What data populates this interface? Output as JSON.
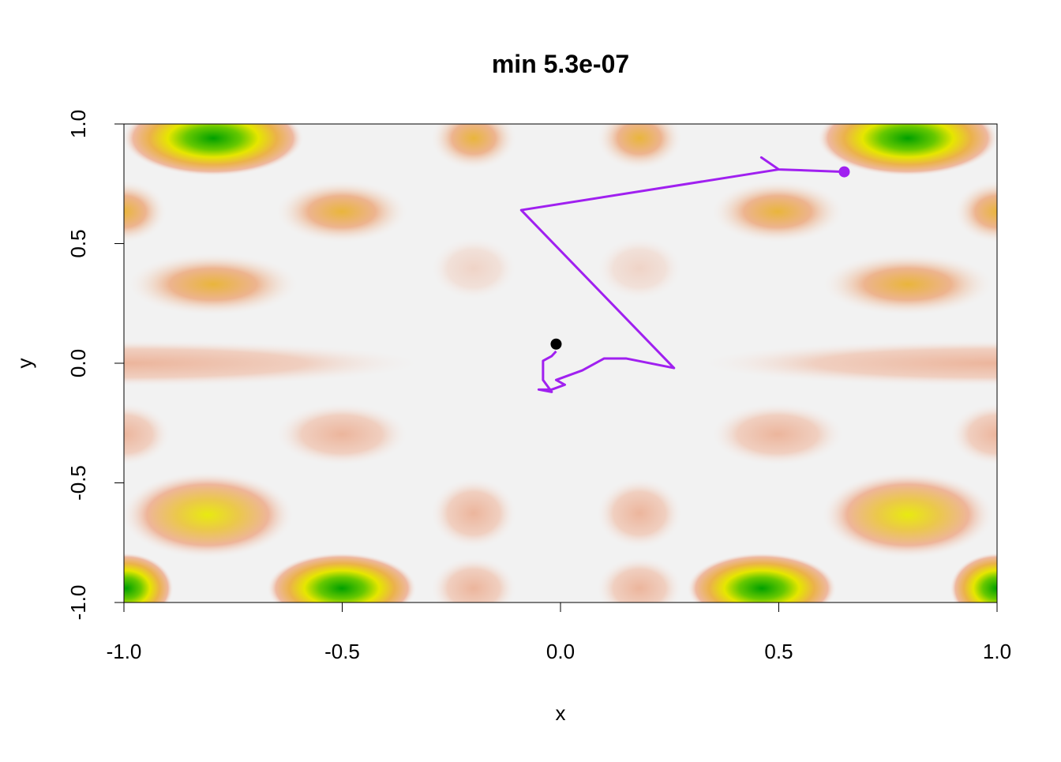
{
  "chart_data": {
    "type": "path",
    "title": "min 5.3e-07",
    "x_label": "x",
    "y_label": "y",
    "xlim": [
      -1,
      1
    ],
    "ylim": [
      -1,
      1
    ],
    "xticks": [
      {
        "value": -1,
        "label": "-1.0"
      },
      -0.5,
      {
        "value": 0,
        "label": "0.0"
      },
      0.5,
      {
        "value": 1,
        "label": "1.0"
      }
    ],
    "yticks": [
      {
        "value": -1,
        "label": "-1.0"
      },
      -0.5,
      {
        "value": 0,
        "label": "0.0"
      },
      0.5,
      {
        "value": 1,
        "label": "1.0"
      }
    ],
    "series": [
      {
        "color": "#a020f0",
        "x": [
          0.65,
          0.5,
          0.46,
          0.5,
          -0.09,
          0.26,
          0.15,
          0.1,
          0.05,
          -0.01,
          0.01,
          -0.02,
          -0.05,
          -0.02,
          -0.04,
          -0.04,
          -0.02,
          -0.01
        ],
        "y": [
          0.8,
          0.81,
          0.86,
          0.81,
          0.64,
          -0.02,
          0.02,
          0.02,
          -0.03,
          -0.07,
          -0.09,
          -0.11,
          -0.11,
          -0.12,
          -0.07,
          0.01,
          0.03,
          0.05
        ]
      }
    ],
    "points": [
      {
        "x": 0.65,
        "y": 0.8,
        "color": "#a020f0"
      },
      {
        "x": -0.01,
        "y": 0.08,
        "color": "#000000"
      }
    ]
  }
}
